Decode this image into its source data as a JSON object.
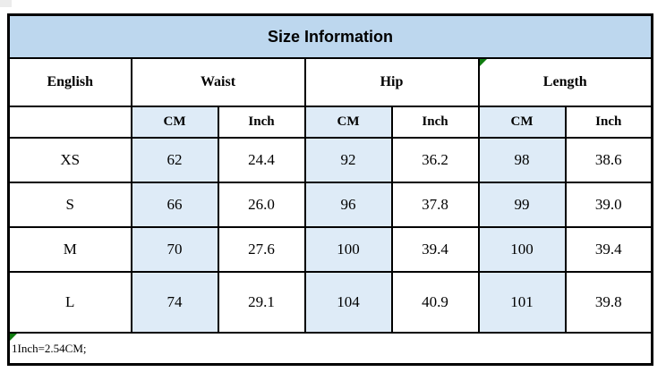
{
  "title": "Size Information",
  "table": {
    "col_groups": [
      {
        "label": "English"
      },
      {
        "label": "Waist"
      },
      {
        "label": "Hip"
      },
      {
        "label": "Length"
      }
    ],
    "unit_headers": [
      "CM",
      "Inch",
      "CM",
      "Inch",
      "CM",
      "Inch"
    ],
    "rows": [
      {
        "size": "XS",
        "values": [
          "62",
          "24.4",
          "92",
          "36.2",
          "98",
          "38.6"
        ]
      },
      {
        "size": "S",
        "values": [
          "66",
          "26.0",
          "96",
          "37.8",
          "99",
          "39.0"
        ]
      },
      {
        "size": "M",
        "values": [
          "70",
          "27.6",
          "100",
          "39.4",
          "100",
          "39.4"
        ]
      },
      {
        "size": "L",
        "values": [
          "74",
          "29.1",
          "104",
          "40.9",
          "101",
          "39.8"
        ]
      }
    ],
    "footnote": "1Inch=2.54CM;"
  },
  "colors": {
    "title_bg": "#BDD7EE",
    "cm_column_bg": "#DEEBF7",
    "border": "#000000",
    "flag_green": "#107C10",
    "text": "#000000"
  },
  "chart_data": {
    "type": "table",
    "title": "Size Information",
    "columns": [
      "English",
      "Waist CM",
      "Waist Inch",
      "Hip CM",
      "Hip Inch",
      "Length CM",
      "Length Inch"
    ],
    "rows": [
      [
        "XS",
        62,
        24.4,
        92,
        36.2,
        98,
        38.6
      ],
      [
        "S",
        66,
        26.0,
        96,
        37.8,
        99,
        39.0
      ],
      [
        "M",
        70,
        27.6,
        100,
        39.4,
        100,
        39.4
      ],
      [
        "L",
        74,
        29.1,
        104,
        40.9,
        101,
        39.8
      ]
    ],
    "note": "1Inch=2.54CM;"
  }
}
